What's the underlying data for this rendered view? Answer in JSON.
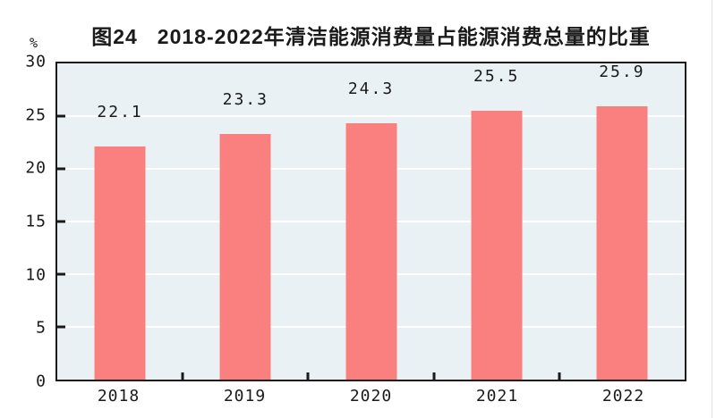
{
  "figure": {
    "label": "图24",
    "title": "2018-2022年清洁能源消费量占能源消费总量的比重",
    "unit_label": "%"
  },
  "chart_data": {
    "type": "bar",
    "title": "图24 2018-2022年清洁能源消费量占能源消费总量的比重",
    "categories": [
      "2018",
      "2019",
      "2020",
      "2021",
      "2022"
    ],
    "values": [
      22.1,
      23.3,
      24.3,
      25.5,
      25.9
    ],
    "value_labels": [
      "22.1",
      "23.3",
      "24.3",
      "25.5",
      "25.9"
    ],
    "xlabel": "",
    "ylabel": "%",
    "ylim": [
      0,
      30
    ],
    "yticks": [
      0,
      5,
      10,
      15,
      20,
      25,
      30
    ],
    "grid": "horizontal",
    "legend": "none",
    "colors": {
      "bar_fill": "#fa8080",
      "plot_background": "#e9f1f4",
      "gridline": "#ffffff",
      "axis": "#1a1a1a",
      "text": "#1a1a1a"
    }
  }
}
